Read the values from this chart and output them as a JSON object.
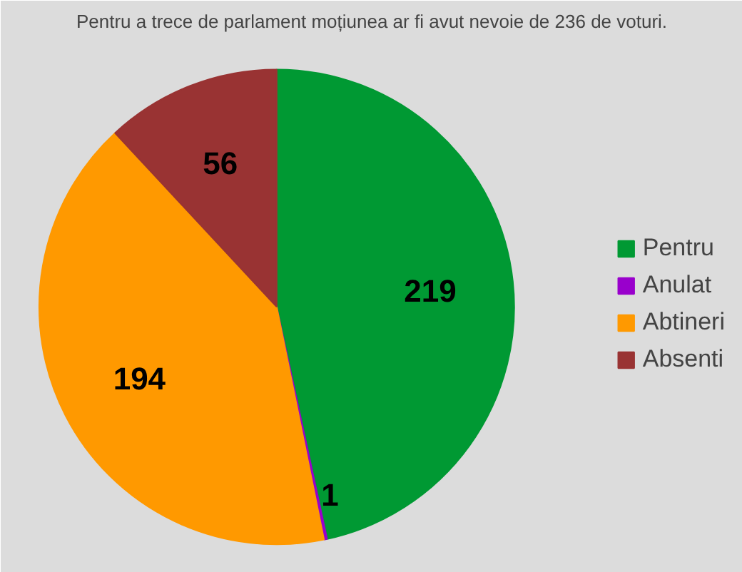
{
  "chart_data": {
    "type": "pie",
    "title": "Pentru a trece de parlament moțiunea ar fi avut nevoie de 236 de voturi.",
    "categories": [
      "Pentru",
      "Anulat",
      "Abtineri",
      "Absenti"
    ],
    "values": [
      219,
      1,
      194,
      56
    ],
    "colors": [
      "#009933",
      "#9900cc",
      "#ff9900",
      "#993333"
    ],
    "data_labels": true,
    "legend": "right"
  }
}
